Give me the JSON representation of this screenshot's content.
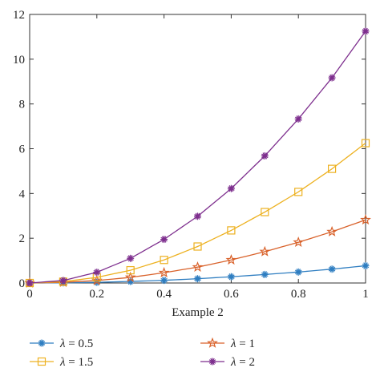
{
  "chart_data": {
    "type": "line",
    "title": "",
    "xlabel": "Example 2",
    "ylabel": "",
    "xlim": [
      0,
      1
    ],
    "ylim": [
      0,
      12
    ],
    "xticks": [
      0,
      0.2,
      0.4,
      0.6,
      0.8,
      1
    ],
    "xtick_labels": [
      "0",
      "0.2",
      "0.4",
      "0.6",
      "0.8",
      "1"
    ],
    "yticks": [
      0,
      2,
      4,
      6,
      8,
      10,
      12
    ],
    "ytick_labels": [
      "0",
      "2",
      "4",
      "6",
      "8",
      "10",
      "12"
    ],
    "grid": false,
    "legend_position": "bottom",
    "x": [
      0,
      0.1,
      0.2,
      0.3,
      0.4,
      0.5,
      0.6,
      0.7,
      0.8,
      0.9,
      1.0
    ],
    "series": [
      {
        "name": "λ = 0.5",
        "symbol": "λ",
        "value_text": " = 0.5",
        "marker": "asterisk",
        "color": "#2f7ec1",
        "values": [
          0,
          0.008,
          0.03,
          0.07,
          0.12,
          0.19,
          0.28,
          0.38,
          0.49,
          0.62,
          0.77
        ]
      },
      {
        "name": "λ = 1",
        "symbol": "λ",
        "value_text": " = 1",
        "marker": "star",
        "color": "#d9622b",
        "values": [
          0,
          0.03,
          0.11,
          0.25,
          0.46,
          0.71,
          1.03,
          1.4,
          1.82,
          2.29,
          2.82
        ]
      },
      {
        "name": "λ = 1.5",
        "symbol": "λ",
        "value_text": " = 1.5",
        "marker": "square",
        "color": "#edb120",
        "values": [
          0,
          0.06,
          0.25,
          0.57,
          1.03,
          1.63,
          2.35,
          3.17,
          4.07,
          5.1,
          6.25
        ]
      },
      {
        "name": "λ = 2",
        "symbol": "λ",
        "value_text": " = 2",
        "marker": "asterisk",
        "color": "#7e2f8e",
        "values": [
          0,
          0.11,
          0.48,
          1.1,
          1.95,
          2.98,
          4.22,
          5.68,
          7.33,
          9.17,
          11.25
        ]
      }
    ]
  }
}
